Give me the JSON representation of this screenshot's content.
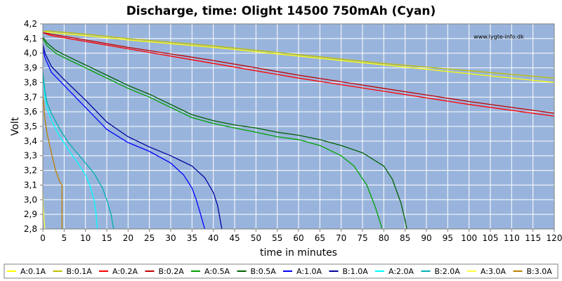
{
  "chart_data": {
    "type": "line",
    "title": "Discharge, time: Olight 14500 750mAh (Cyan)",
    "xlabel": "time in minutes",
    "ylabel": "Volt",
    "watermark": "www.lygte-info.dk",
    "xlim": [
      0,
      120
    ],
    "ylim": [
      2.8,
      4.2
    ],
    "xticks": [
      "0",
      "5",
      "10",
      "15",
      "20",
      "25",
      "30",
      "35",
      "40",
      "45",
      "50",
      "55",
      "60",
      "65",
      "70",
      "75",
      "80",
      "85",
      "90",
      "95",
      "100",
      "105",
      "110",
      "115",
      "120"
    ],
    "yticks": [
      "2,8",
      "2,9",
      "3,0",
      "3,1",
      "3,2",
      "3,3",
      "3,4",
      "3,5",
      "3,6",
      "3,7",
      "3,8",
      "3,9",
      "4,0",
      "4,1",
      "4,2"
    ],
    "grid": true,
    "legend_position": "bottom",
    "colors": {
      "plot_bg": "#99b4dc",
      "grid": "#ffffff",
      "border": "#808080",
      "legend_border": "#808080"
    },
    "series": [
      {
        "name": "A:0.1A",
        "color": "#ffff00",
        "x": [
          0,
          2,
          10,
          20,
          40,
          60,
          80,
          100,
          120
        ],
        "y": [
          4.15,
          4.14,
          4.12,
          4.09,
          4.04,
          3.98,
          3.92,
          3.86,
          3.8
        ]
      },
      {
        "name": "B:0.1A",
        "color": "#bfbf00",
        "x": [
          0,
          2,
          10,
          20,
          40,
          60,
          80,
          100,
          120
        ],
        "y": [
          4.15,
          4.15,
          4.13,
          4.1,
          4.05,
          3.99,
          3.93,
          3.88,
          3.83
        ]
      },
      {
        "name": "A:0.2A",
        "color": "#ff0000",
        "x": [
          0,
          2,
          10,
          20,
          40,
          60,
          80,
          100,
          120
        ],
        "y": [
          4.14,
          4.12,
          4.08,
          4.03,
          3.93,
          3.83,
          3.74,
          3.65,
          3.57
        ]
      },
      {
        "name": "B:0.2A",
        "color": "#c00000",
        "x": [
          0,
          2,
          10,
          20,
          40,
          60,
          80,
          100,
          120
        ],
        "y": [
          4.14,
          4.13,
          4.09,
          4.04,
          3.95,
          3.85,
          3.76,
          3.67,
          3.59
        ]
      },
      {
        "name": "A:0.5A",
        "color": "#00a000",
        "x": [
          0,
          1,
          3,
          5,
          10,
          15,
          20,
          25,
          30,
          35,
          40,
          45,
          50,
          55,
          60,
          65,
          70,
          73,
          76,
          78,
          79,
          79.6
        ],
        "y": [
          4.1,
          4.05,
          4.0,
          3.97,
          3.9,
          3.83,
          3.76,
          3.7,
          3.63,
          3.56,
          3.52,
          3.49,
          3.46,
          3.43,
          3.41,
          3.37,
          3.3,
          3.23,
          3.1,
          2.95,
          2.86,
          2.8
        ]
      },
      {
        "name": "B:0.5A",
        "color": "#006000",
        "x": [
          0,
          1,
          3,
          5,
          10,
          15,
          20,
          25,
          30,
          35,
          40,
          45,
          50,
          55,
          60,
          65,
          70,
          75,
          80,
          82,
          84,
          85,
          85.4
        ],
        "y": [
          4.11,
          4.07,
          4.02,
          3.99,
          3.92,
          3.85,
          3.78,
          3.72,
          3.65,
          3.58,
          3.54,
          3.51,
          3.49,
          3.46,
          3.44,
          3.41,
          3.37,
          3.32,
          3.23,
          3.14,
          2.98,
          2.86,
          2.8
        ]
      },
      {
        "name": "A:1.0A",
        "color": "#0000ff",
        "x": [
          0,
          0.5,
          2,
          5,
          10,
          15,
          20,
          25,
          30,
          33,
          35,
          36,
          37,
          37.5,
          38
        ],
        "y": [
          4.03,
          3.97,
          3.87,
          3.78,
          3.63,
          3.48,
          3.39,
          3.33,
          3.25,
          3.17,
          3.08,
          3.0,
          2.9,
          2.85,
          2.8
        ]
      },
      {
        "name": "B:1.0A",
        "color": "#0000a0",
        "x": [
          0,
          0.5,
          2,
          5,
          10,
          15,
          20,
          25,
          30,
          35,
          38,
          40,
          41,
          41.5,
          42
        ],
        "y": [
          4.06,
          4.0,
          3.91,
          3.82,
          3.68,
          3.53,
          3.43,
          3.36,
          3.3,
          3.23,
          3.15,
          3.05,
          2.96,
          2.88,
          2.8
        ]
      },
      {
        "name": "A:2.0A",
        "color": "#00ffff",
        "x": [
          0,
          0.5,
          1,
          2,
          4,
          6,
          8,
          10,
          11,
          12,
          12.5,
          12.8
        ],
        "y": [
          3.86,
          3.7,
          3.62,
          3.54,
          3.43,
          3.34,
          3.26,
          3.17,
          3.1,
          3.0,
          2.9,
          2.8
        ]
      },
      {
        "name": "B:2.0A",
        "color": "#00b0b0",
        "x": [
          0,
          0.5,
          1,
          2,
          4,
          6,
          8,
          10,
          12,
          14,
          15,
          16,
          16.6
        ],
        "y": [
          3.88,
          3.74,
          3.66,
          3.59,
          3.48,
          3.39,
          3.32,
          3.25,
          3.18,
          3.08,
          3.0,
          2.9,
          2.8
        ]
      },
      {
        "name": "A:3.0A",
        "color": "#ffff40",
        "x": [
          0,
          0.1,
          0.3,
          0.5
        ],
        "y": [
          3.05,
          2.95,
          2.85,
          2.8
        ]
      },
      {
        "name": "B:3.0A",
        "color": "#c08000",
        "x": [
          0,
          0.5,
          1,
          2,
          3,
          4,
          4.5,
          4.5
        ],
        "y": [
          3.72,
          3.55,
          3.45,
          3.32,
          3.2,
          3.12,
          3.1,
          2.8
        ]
      }
    ]
  }
}
